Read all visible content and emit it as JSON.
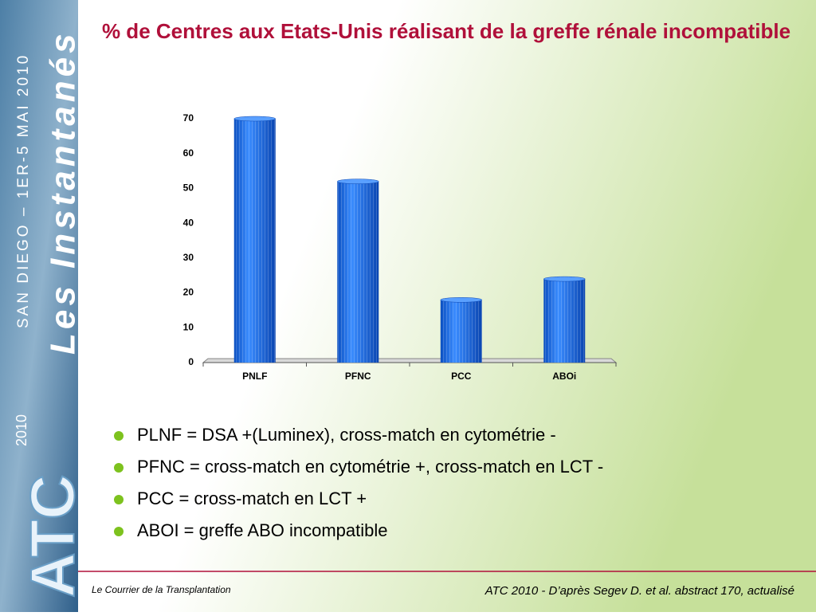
{
  "sidebar": {
    "brand": "Les Instantanés",
    "event": "SAN DIEGO – 1ER-5 MAI 2010",
    "logo": "ATC",
    "logo_year": "2010"
  },
  "chart_data": {
    "type": "bar",
    "title": "% de Centres aux Etats-Unis réalisant de la greffe rénale incompatible",
    "categories": [
      "PNLF",
      "PFNC",
      "PCC",
      "ABOi"
    ],
    "values": [
      70,
      52,
      18,
      24
    ],
    "color": "#1f6fe0",
    "ylim": [
      0,
      70
    ],
    "yticks": [
      0,
      10,
      20,
      30,
      40,
      50,
      60,
      70
    ],
    "grid": false
  },
  "bullets": [
    "PLNF = DSA +(Luminex), cross-match en cytométrie -",
    "PFNC = cross-match en cytométrie +, cross-match en LCT -",
    "PCC = cross-match en LCT +",
    "ABOI = greffe ABO incompatible"
  ],
  "footer": {
    "left": "Le Courrier de la Transplantation",
    "right": "ATC 2010 - D’après Segev D. et al. abstract 170, actualisé"
  }
}
